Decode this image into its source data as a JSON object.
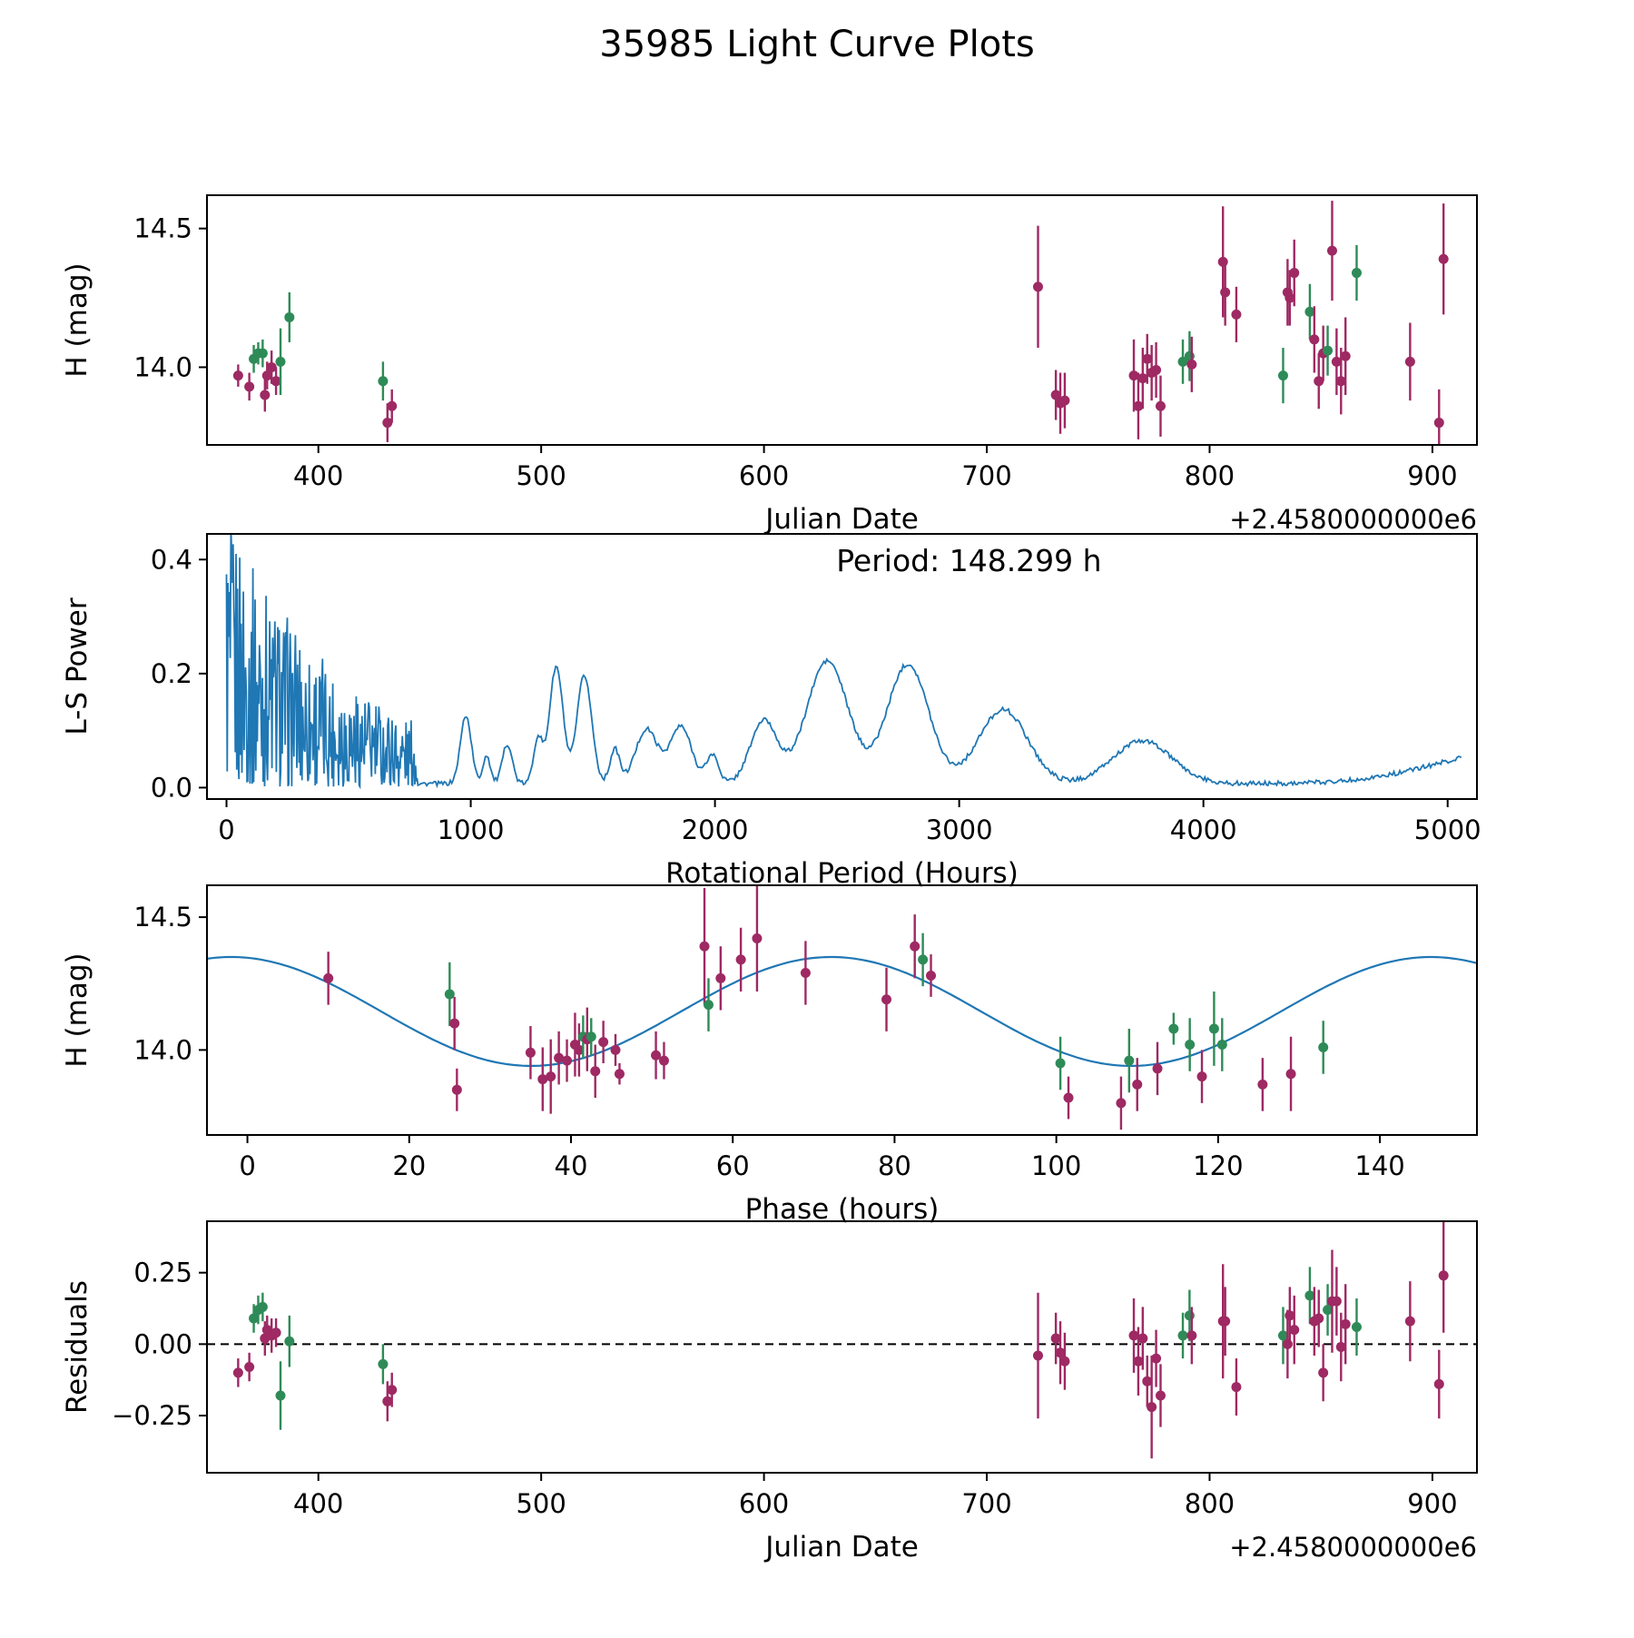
{
  "title": "35985 Light Curve Plots",
  "colors": {
    "green": "#2e8b57",
    "purple": "#9e2963",
    "line_blue": "#1f77b4",
    "axis": "#000000"
  },
  "chart_data": [
    {
      "id": "lightcurve",
      "type": "scatter",
      "xlabel": "Julian Date",
      "ylabel": "H (mag)",
      "x_offset_text": "+2.4580000000e6",
      "xlim": [
        350,
        920
      ],
      "ylim": [
        13.72,
        14.62
      ],
      "xticks": [
        400,
        500,
        600,
        700,
        800,
        900
      ],
      "xtick_labels": [
        "400",
        "500",
        "600",
        "700",
        "800",
        "900"
      ],
      "yticks": [
        14.0,
        14.5
      ],
      "ytick_labels": [
        "14.0",
        "14.5"
      ],
      "points": [
        [
          364,
          13.97,
          0.04,
          "p"
        ],
        [
          369,
          13.93,
          0.05,
          "p"
        ],
        [
          371,
          14.03,
          0.05,
          "g"
        ],
        [
          373,
          14.05,
          0.04,
          "g"
        ],
        [
          375,
          14.05,
          0.05,
          "g"
        ],
        [
          376,
          13.9,
          0.06,
          "p"
        ],
        [
          377,
          13.97,
          0.05,
          "p"
        ],
        [
          379,
          14.0,
          0.06,
          "p"
        ],
        [
          381,
          13.95,
          0.05,
          "p"
        ],
        [
          383,
          14.02,
          0.12,
          "g"
        ],
        [
          387,
          14.18,
          0.09,
          "g"
        ],
        [
          429,
          13.95,
          0.07,
          "g"
        ],
        [
          431,
          13.8,
          0.07,
          "p"
        ],
        [
          433,
          13.86,
          0.06,
          "p"
        ],
        [
          723,
          14.29,
          0.22,
          "p"
        ],
        [
          731,
          13.9,
          0.09,
          "p"
        ],
        [
          733,
          13.87,
          0.11,
          "p"
        ],
        [
          735,
          13.88,
          0.1,
          "p"
        ],
        [
          766,
          13.97,
          0.13,
          "p"
        ],
        [
          768,
          13.86,
          0.12,
          "p"
        ],
        [
          770,
          13.96,
          0.11,
          "p"
        ],
        [
          772,
          14.03,
          0.09,
          "p"
        ],
        [
          774,
          13.98,
          0.1,
          "p"
        ],
        [
          776,
          13.99,
          0.1,
          "p"
        ],
        [
          778,
          13.86,
          0.11,
          "p"
        ],
        [
          788,
          14.02,
          0.08,
          "g"
        ],
        [
          791,
          14.04,
          0.09,
          "g"
        ],
        [
          792,
          14.01,
          0.1,
          "p"
        ],
        [
          806,
          14.38,
          0.2,
          "p"
        ],
        [
          807,
          14.27,
          0.12,
          "p"
        ],
        [
          812,
          14.19,
          0.1,
          "p"
        ],
        [
          833,
          13.97,
          0.1,
          "g"
        ],
        [
          835,
          14.27,
          0.12,
          "p"
        ],
        [
          836,
          14.25,
          0.1,
          "p"
        ],
        [
          838,
          14.34,
          0.12,
          "p"
        ],
        [
          845,
          14.2,
          0.1,
          "g"
        ],
        [
          847,
          14.1,
          0.12,
          "p"
        ],
        [
          849,
          13.95,
          0.1,
          "p"
        ],
        [
          851,
          14.05,
          0.1,
          "p"
        ],
        [
          853,
          14.06,
          0.09,
          "g"
        ],
        [
          855,
          14.42,
          0.18,
          "p"
        ],
        [
          857,
          14.02,
          0.12,
          "p"
        ],
        [
          859,
          13.95,
          0.12,
          "p"
        ],
        [
          861,
          14.04,
          0.14,
          "p"
        ],
        [
          866,
          14.34,
          0.1,
          "g"
        ],
        [
          890,
          14.02,
          0.14,
          "p"
        ],
        [
          903,
          13.8,
          0.12,
          "p"
        ],
        [
          905,
          14.39,
          0.2,
          "p"
        ]
      ]
    },
    {
      "id": "periodogram",
      "type": "line",
      "xlabel": "Rotational Period (Hours)",
      "ylabel": "L-S Power",
      "xlim": [
        -80,
        5120
      ],
      "ylim": [
        -0.02,
        0.445
      ],
      "xticks": [
        0,
        1000,
        2000,
        3000,
        4000,
        5000
      ],
      "xtick_labels": [
        "0",
        "1000",
        "2000",
        "3000",
        "4000",
        "5000"
      ],
      "yticks": [
        0.0,
        0.2,
        0.4
      ],
      "ytick_labels": [
        "0.0",
        "0.2",
        "0.4"
      ],
      "annotation": {
        "text": "Period: 148.299 h",
        "fx": 0.6,
        "fy": 0.1
      },
      "noise": {
        "xmax": 780,
        "env0": 0.46,
        "decay": 500,
        "floor": 0.02
      },
      "peaks": [
        [
          980,
          0.12,
          22
        ],
        [
          1065,
          0.05,
          15
        ],
        [
          1150,
          0.07,
          20
        ],
        [
          1275,
          0.08,
          18
        ],
        [
          1350,
          0.205,
          28
        ],
        [
          1465,
          0.19,
          30
        ],
        [
          1590,
          0.06,
          20
        ],
        [
          1720,
          0.095,
          45
        ],
        [
          1860,
          0.1,
          45
        ],
        [
          1990,
          0.05,
          25
        ],
        [
          2200,
          0.11,
          55
        ],
        [
          2460,
          0.215,
          85
        ],
        [
          2790,
          0.21,
          85
        ],
        [
          3180,
          0.13,
          100
        ],
        [
          3750,
          0.075,
          120
        ],
        [
          5300,
          0.06,
          330
        ]
      ]
    },
    {
      "id": "phase",
      "type": "scatter_line",
      "xlabel": "Phase (hours)",
      "ylabel": "H (mag)",
      "xlim": [
        -5,
        152
      ],
      "ylim": [
        13.68,
        14.62
      ],
      "xticks": [
        0,
        20,
        40,
        60,
        80,
        100,
        120,
        140
      ],
      "xtick_labels": [
        "0",
        "20",
        "40",
        "60",
        "80",
        "100",
        "120",
        "140"
      ],
      "yticks": [
        14.0,
        14.5
      ],
      "ytick_labels": [
        "14.0",
        "14.5"
      ],
      "fit": {
        "mean": 14.145,
        "amplitude": 0.205,
        "period": 74.15,
        "xmax": -2.0
      },
      "points": [
        [
          10,
          14.27,
          0.1,
          "p"
        ],
        [
          25,
          14.21,
          0.12,
          "g"
        ],
        [
          25.6,
          14.1,
          0.1,
          "p"
        ],
        [
          25.9,
          13.85,
          0.08,
          "p"
        ],
        [
          35,
          13.99,
          0.1,
          "p"
        ],
        [
          36.5,
          13.89,
          0.12,
          "p"
        ],
        [
          37.5,
          13.9,
          0.14,
          "p"
        ],
        [
          38.5,
          13.97,
          0.1,
          "p"
        ],
        [
          39.5,
          13.96,
          0.08,
          "p"
        ],
        [
          40.5,
          14.02,
          0.12,
          "p"
        ],
        [
          41,
          14.0,
          0.1,
          "p"
        ],
        [
          41.5,
          14.05,
          0.08,
          "g"
        ],
        [
          42,
          14.04,
          0.12,
          "p"
        ],
        [
          42.5,
          14.05,
          0.07,
          "g"
        ],
        [
          43,
          13.92,
          0.1,
          "p"
        ],
        [
          44,
          14.03,
          0.08,
          "p"
        ],
        [
          45.5,
          14.0,
          0.06,
          "p"
        ],
        [
          46,
          13.91,
          0.04,
          "p"
        ],
        [
          50.5,
          13.98,
          0.09,
          "p"
        ],
        [
          51.5,
          13.96,
          0.07,
          "p"
        ],
        [
          56.5,
          14.39,
          0.22,
          "p"
        ],
        [
          57,
          14.17,
          0.1,
          "g"
        ],
        [
          58.5,
          14.27,
          0.12,
          "p"
        ],
        [
          61,
          14.34,
          0.12,
          "p"
        ],
        [
          63,
          14.42,
          0.2,
          "p"
        ],
        [
          69,
          14.29,
          0.12,
          "p"
        ],
        [
          79,
          14.19,
          0.12,
          "p"
        ],
        [
          82.5,
          14.39,
          0.12,
          "p"
        ],
        [
          83.5,
          14.34,
          0.1,
          "g"
        ],
        [
          84.5,
          14.28,
          0.08,
          "p"
        ],
        [
          100.5,
          13.95,
          0.1,
          "g"
        ],
        [
          101.5,
          13.82,
          0.08,
          "p"
        ],
        [
          108,
          13.8,
          0.1,
          "p"
        ],
        [
          109,
          13.96,
          0.12,
          "g"
        ],
        [
          110,
          13.87,
          0.1,
          "p"
        ],
        [
          112.5,
          13.93,
          0.1,
          "p"
        ],
        [
          114.5,
          14.08,
          0.06,
          "g"
        ],
        [
          116.5,
          14.02,
          0.1,
          "g"
        ],
        [
          118,
          13.9,
          0.1,
          "p"
        ],
        [
          119.5,
          14.08,
          0.14,
          "g"
        ],
        [
          120.5,
          14.02,
          0.1,
          "g"
        ],
        [
          125.5,
          13.87,
          0.1,
          "p"
        ],
        [
          129,
          13.91,
          0.14,
          "p"
        ],
        [
          133,
          14.01,
          0.1,
          "g"
        ]
      ]
    },
    {
      "id": "residuals",
      "type": "scatter",
      "xlabel": "Julian Date",
      "ylabel": "Residuals",
      "x_offset_text": "+2.4580000000e6",
      "xlim": [
        350,
        920
      ],
      "ylim": [
        -0.45,
        0.43
      ],
      "xticks": [
        400,
        500,
        600,
        700,
        800,
        900
      ],
      "xtick_labels": [
        "400",
        "500",
        "600",
        "700",
        "800",
        "900"
      ],
      "yticks": [
        -0.25,
        0.0,
        0.25
      ],
      "ytick_labels": [
        "−0.25",
        "0.00",
        "0.25"
      ],
      "hline": 0,
      "points": [
        [
          364,
          -0.1,
          0.05,
          "p"
        ],
        [
          369,
          -0.08,
          0.05,
          "p"
        ],
        [
          371,
          0.09,
          0.05,
          "g"
        ],
        [
          373,
          0.12,
          0.05,
          "g"
        ],
        [
          375,
          0.13,
          0.05,
          "g"
        ],
        [
          376,
          0.02,
          0.06,
          "p"
        ],
        [
          377,
          0.05,
          0.05,
          "p"
        ],
        [
          379,
          0.03,
          0.06,
          "p"
        ],
        [
          381,
          0.04,
          0.05,
          "p"
        ],
        [
          383,
          -0.18,
          0.12,
          "g"
        ],
        [
          387,
          0.01,
          0.09,
          "g"
        ],
        [
          429,
          -0.07,
          0.07,
          "g"
        ],
        [
          431,
          -0.2,
          0.07,
          "p"
        ],
        [
          433,
          -0.16,
          0.06,
          "p"
        ],
        [
          723,
          -0.04,
          0.22,
          "p"
        ],
        [
          731,
          0.02,
          0.09,
          "p"
        ],
        [
          733,
          -0.03,
          0.11,
          "p"
        ],
        [
          735,
          -0.06,
          0.1,
          "p"
        ],
        [
          766,
          0.03,
          0.13,
          "p"
        ],
        [
          768,
          -0.06,
          0.12,
          "p"
        ],
        [
          770,
          0.02,
          0.11,
          "p"
        ],
        [
          772,
          -0.13,
          0.09,
          "p"
        ],
        [
          774,
          -0.22,
          0.18,
          "p"
        ],
        [
          776,
          -0.05,
          0.1,
          "p"
        ],
        [
          778,
          -0.18,
          0.11,
          "p"
        ],
        [
          788,
          0.03,
          0.08,
          "g"
        ],
        [
          791,
          0.1,
          0.09,
          "g"
        ],
        [
          792,
          0.03,
          0.1,
          "p"
        ],
        [
          806,
          0.08,
          0.2,
          "p"
        ],
        [
          807,
          0.08,
          0.12,
          "p"
        ],
        [
          812,
          -0.15,
          0.1,
          "p"
        ],
        [
          833,
          0.03,
          0.1,
          "g"
        ],
        [
          835,
          0.0,
          0.12,
          "p"
        ],
        [
          836,
          0.1,
          0.1,
          "p"
        ],
        [
          838,
          0.05,
          0.12,
          "p"
        ],
        [
          845,
          0.17,
          0.1,
          "g"
        ],
        [
          847,
          0.08,
          0.12,
          "p"
        ],
        [
          849,
          0.09,
          0.1,
          "p"
        ],
        [
          851,
          -0.1,
          0.1,
          "p"
        ],
        [
          853,
          0.12,
          0.09,
          "g"
        ],
        [
          855,
          0.15,
          0.18,
          "p"
        ],
        [
          857,
          0.15,
          0.12,
          "p"
        ],
        [
          859,
          -0.01,
          0.12,
          "p"
        ],
        [
          861,
          0.07,
          0.14,
          "p"
        ],
        [
          866,
          0.06,
          0.1,
          "g"
        ],
        [
          890,
          0.08,
          0.14,
          "p"
        ],
        [
          903,
          -0.14,
          0.12,
          "p"
        ],
        [
          905,
          0.24,
          0.2,
          "p"
        ]
      ]
    }
  ]
}
